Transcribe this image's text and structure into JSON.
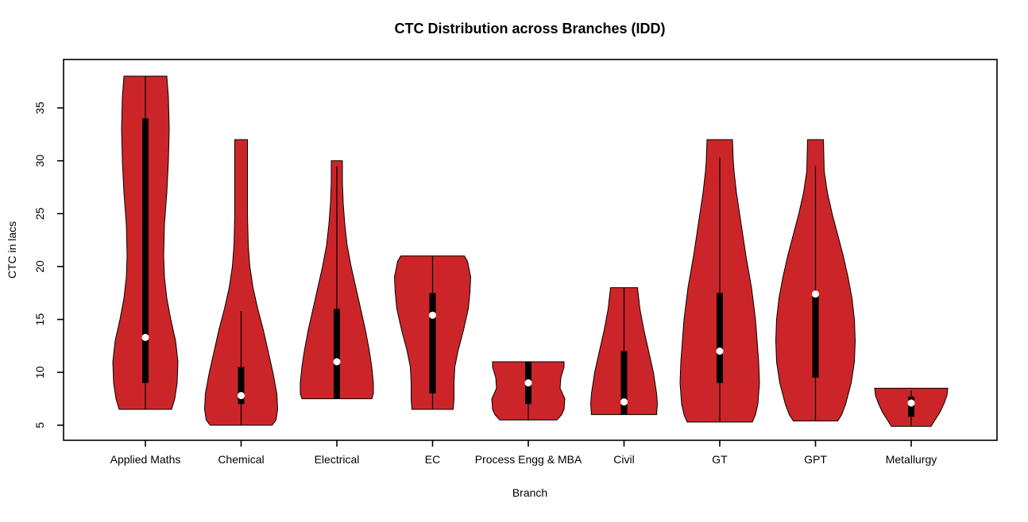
{
  "chart_data": {
    "type": "violin",
    "title": "CTC Distribution across Branches (IDD)",
    "xlabel": "Branch",
    "ylabel": "CTC in lacs",
    "ylim": [
      3.5,
      39.5
    ],
    "yticks": [
      5,
      10,
      15,
      20,
      25,
      30,
      35
    ],
    "grid": false,
    "legend": "none",
    "categories": [
      "Applied Maths",
      "Chemical",
      "Electrical",
      "EC",
      "Process Engg & MBA",
      "Civil",
      "GT",
      "GPT",
      "Metallurgy"
    ],
    "colors": {
      "violin_fill": "#CC2529",
      "violin_stroke": "#000000",
      "box": "#000000",
      "whisker": "#000000",
      "median_dot": "#FFFFFF",
      "axis": "#000000",
      "background": "#FFFFFF"
    },
    "series": [
      {
        "branch": "Applied Maths",
        "range": [
          6.5,
          38
        ],
        "whisker": [
          6.5,
          38
        ],
        "q1": 9,
        "q3": 34,
        "median": 13.3,
        "profile": [
          [
            6.5,
            33
          ],
          [
            7.5,
            37
          ],
          [
            9,
            40
          ],
          [
            11,
            41
          ],
          [
            13,
            38
          ],
          [
            15,
            32
          ],
          [
            17,
            27
          ],
          [
            19,
            24
          ],
          [
            21,
            23
          ],
          [
            24,
            24
          ],
          [
            27,
            27
          ],
          [
            30,
            29
          ],
          [
            33,
            30
          ],
          [
            36,
            29
          ],
          [
            38,
            27
          ]
        ]
      },
      {
        "branch": "Chemical",
        "range": [
          5,
          32
        ],
        "whisker": [
          5,
          15.8
        ],
        "q1": 7,
        "q3": 10.5,
        "median": 7.8,
        "profile": [
          [
            5,
            39
          ],
          [
            5.5,
            44
          ],
          [
            6.5,
            46
          ],
          [
            8,
            45
          ],
          [
            10,
            40
          ],
          [
            12,
            34
          ],
          [
            14,
            28
          ],
          [
            16,
            21
          ],
          [
            18,
            15
          ],
          [
            20,
            11
          ],
          [
            22,
            9
          ],
          [
            25,
            8
          ],
          [
            28,
            8
          ],
          [
            32,
            8
          ]
        ]
      },
      {
        "branch": "Electrical",
        "range": [
          7.5,
          30
        ],
        "whisker": [
          7.5,
          29.5
        ],
        "q1": 7.5,
        "q3": 16,
        "median": 11,
        "profile": [
          [
            7.5,
            44
          ],
          [
            8,
            46
          ],
          [
            9,
            46
          ],
          [
            10.5,
            44
          ],
          [
            12,
            41
          ],
          [
            14,
            36
          ],
          [
            16,
            30
          ],
          [
            18,
            24
          ],
          [
            20,
            18
          ],
          [
            22,
            13
          ],
          [
            24,
            10
          ],
          [
            26,
            8
          ],
          [
            28,
            7
          ],
          [
            30,
            7
          ]
        ]
      },
      {
        "branch": "EC",
        "range": [
          6.5,
          21
        ],
        "whisker": [
          6.5,
          21
        ],
        "q1": 8,
        "q3": 17.5,
        "median": 15.4,
        "profile": [
          [
            6.5,
            26
          ],
          [
            7.5,
            27
          ],
          [
            9,
            27
          ],
          [
            10.5,
            28
          ],
          [
            12,
            32
          ],
          [
            14,
            39
          ],
          [
            16,
            45
          ],
          [
            17.5,
            47
          ],
          [
            19,
            48
          ],
          [
            20.5,
            44
          ],
          [
            21,
            40
          ]
        ]
      },
      {
        "branch": "Process Engg & MBA",
        "range": [
          5.5,
          11
        ],
        "whisker": [
          5.5,
          11
        ],
        "q1": 7,
        "q3": 11,
        "median": 9,
        "profile": [
          [
            5.5,
            36
          ],
          [
            6,
            42
          ],
          [
            6.5,
            45
          ],
          [
            7.5,
            46
          ],
          [
            8.5,
            40
          ],
          [
            9.5,
            41
          ],
          [
            10.5,
            45
          ],
          [
            11,
            45
          ]
        ]
      },
      {
        "branch": "Civil",
        "range": [
          6,
          18
        ],
        "whisker": [
          6,
          18
        ],
        "q1": 6,
        "q3": 12,
        "median": 7.2,
        "profile": [
          [
            6,
            41
          ],
          [
            7,
            42
          ],
          [
            8,
            41
          ],
          [
            10,
            37
          ],
          [
            12,
            31
          ],
          [
            14,
            25
          ],
          [
            16,
            20
          ],
          [
            18,
            17
          ]
        ]
      },
      {
        "branch": "GT",
        "range": [
          5.3,
          32
        ],
        "whisker": [
          5.3,
          30.3
        ],
        "q1": 9,
        "q3": 17.5,
        "median": 12,
        "profile": [
          [
            5.3,
            41
          ],
          [
            6,
            45
          ],
          [
            7,
            48
          ],
          [
            9,
            50
          ],
          [
            11,
            49
          ],
          [
            13,
            47
          ],
          [
            15,
            45
          ],
          [
            18,
            40
          ],
          [
            21,
            33
          ],
          [
            24,
            27
          ],
          [
            27,
            21
          ],
          [
            29,
            18
          ],
          [
            30,
            17
          ],
          [
            32,
            16
          ]
        ]
      },
      {
        "branch": "GPT",
        "range": [
          5.4,
          32
        ],
        "whisker": [
          5.4,
          29.5
        ],
        "q1": 9.5,
        "q3": 17.5,
        "median": 17.4,
        "profile": [
          [
            5.4,
            28
          ],
          [
            6,
            33
          ],
          [
            7,
            38
          ],
          [
            9,
            45
          ],
          [
            11,
            49
          ],
          [
            13,
            50
          ],
          [
            15,
            49
          ],
          [
            17,
            46
          ],
          [
            19,
            41
          ],
          [
            21,
            35
          ],
          [
            23,
            28
          ],
          [
            25,
            21
          ],
          [
            27,
            15
          ],
          [
            29,
            11
          ],
          [
            32,
            10
          ]
        ]
      },
      {
        "branch": "Metallurgy",
        "range": [
          4.9,
          8.5
        ],
        "whisker": [
          4.9,
          8.3
        ],
        "q1": 5.8,
        "q3": 7.7,
        "median": 7.1,
        "profile": [
          [
            4.9,
            25
          ],
          [
            5.5,
            30
          ],
          [
            6.2,
            36
          ],
          [
            7,
            41
          ],
          [
            7.8,
            45
          ],
          [
            8.5,
            46
          ]
        ]
      }
    ]
  }
}
